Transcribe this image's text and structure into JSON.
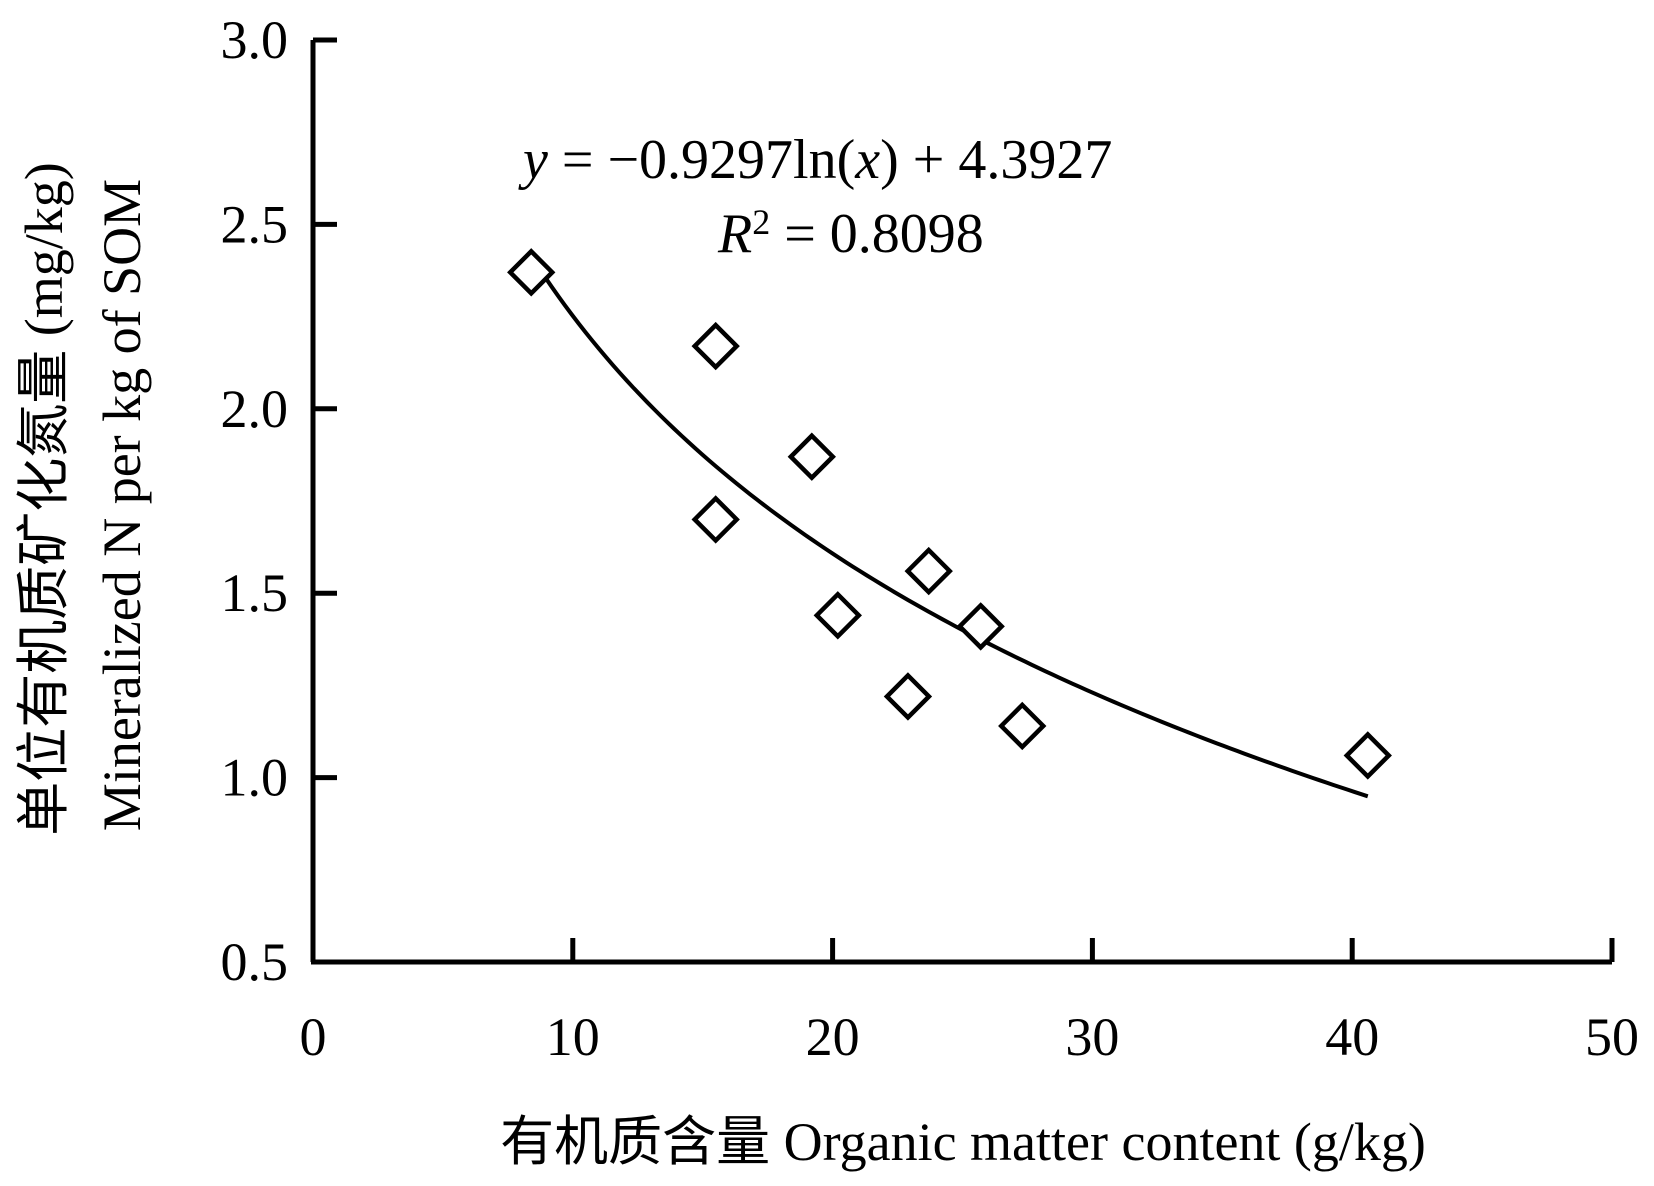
{
  "chart_data": {
    "type": "scatter",
    "xlabel": "有机质含量 Organic matter content (g/kg)",
    "ylabel_line1": "单位有机质矿化氮量 (mg/kg)",
    "ylabel_line2": "Mineralized N per kg of SOM",
    "xlim": [
      0,
      50
    ],
    "ylim": [
      0.5,
      3.0
    ],
    "x_ticks": [
      0,
      10,
      20,
      30,
      40,
      50
    ],
    "y_ticks": [
      0.5,
      1.0,
      1.5,
      2.0,
      2.5,
      3.0
    ],
    "x_tick_labels": [
      "0",
      "10",
      "20",
      "30",
      "40",
      "50"
    ],
    "y_tick_labels": [
      "0.5",
      "1.0",
      "1.5",
      "2.0",
      "2.5",
      "3.0"
    ],
    "grid": false,
    "legend": "none",
    "marker": "open-diamond",
    "series": [
      {
        "points": [
          {
            "x": 8.4,
            "y": 2.37
          },
          {
            "x": 15.5,
            "y": 2.17
          },
          {
            "x": 15.5,
            "y": 1.7
          },
          {
            "x": 19.2,
            "y": 1.87
          },
          {
            "x": 20.2,
            "y": 1.44
          },
          {
            "x": 22.9,
            "y": 1.22
          },
          {
            "x": 23.7,
            "y": 1.56
          },
          {
            "x": 25.7,
            "y": 1.41
          },
          {
            "x": 27.3,
            "y": 1.14
          },
          {
            "x": 40.6,
            "y": 1.06
          }
        ]
      }
    ],
    "trendline": {
      "type": "logarithmic",
      "a": -0.9297,
      "b": 4.3927,
      "x_range": [
        8.9,
        40.6
      ]
    },
    "equation": {
      "y_var": "y",
      "equals_text": " = −0.9297ln(",
      "x_var": "x",
      "tail_text": ") + 4.3927",
      "r_var": "R",
      "r_sup": "2",
      "r_value_text": " = 0.8098"
    },
    "colors": {
      "axis": "#000000",
      "marker": "#000000",
      "trendline": "#000000"
    }
  }
}
